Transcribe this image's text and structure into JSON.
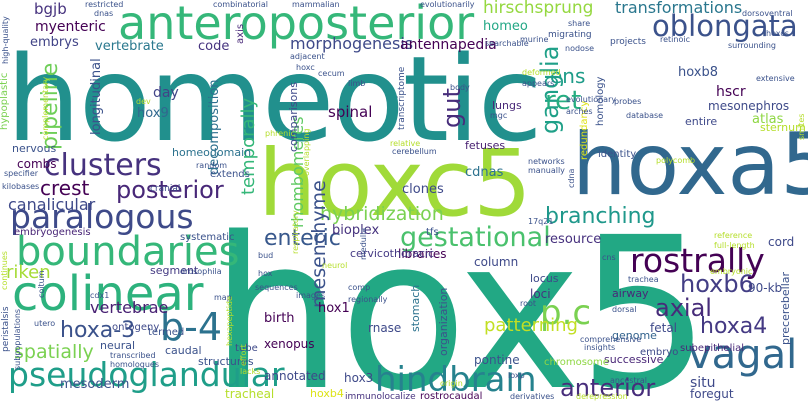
{
  "words": [
    {
      "text": "hox5",
      "color": "#22a884"
    },
    {
      "text": "homeotic",
      "color": "#21908d"
    },
    {
      "text": "hoxc5",
      "color": "#a0da39"
    },
    {
      "text": "hoxa5",
      "color": "#31688e"
    },
    {
      "text": "anteroposterior",
      "color": "#35b779"
    },
    {
      "text": "colinear",
      "color": "#2db27d"
    },
    {
      "text": "boundaries",
      "color": "#35b779"
    },
    {
      "text": "paralogous",
      "color": "#3e4a89"
    },
    {
      "text": "clusters",
      "color": "#46327e"
    },
    {
      "text": "pseudoglandular",
      "color": "#1f9e89"
    },
    {
      "text": "hindbrain",
      "color": "#26828e"
    },
    {
      "text": "vagal",
      "color": "#31688e"
    },
    {
      "text": "rostrally",
      "color": "#440154"
    },
    {
      "text": "oblongata",
      "color": "#3b528b"
    },
    {
      "text": "gestational",
      "color": "#4ac16d"
    },
    {
      "text": "b-4",
      "color": "#2c728e"
    },
    {
      "text": "p.c",
      "color": "#7ad151"
    },
    {
      "text": "posterior",
      "color": "#482878"
    },
    {
      "text": "anterior",
      "color": "#472d7b"
    },
    {
      "text": "hoxa-3",
      "color": "#3b528b"
    },
    {
      "text": "hoxb6",
      "color": "#433e85"
    },
    {
      "text": "hoxa4",
      "color": "#443983"
    },
    {
      "text": "axial",
      "color": "#472c7a"
    },
    {
      "text": "enteric",
      "color": "#38588c"
    },
    {
      "text": "branching",
      "color": "#1f988b"
    },
    {
      "text": "ganglia",
      "color": "#1fa088"
    },
    {
      "text": "ret",
      "color": "#26ad81"
    },
    {
      "text": "ens",
      "color": "#1e9c89"
    },
    {
      "text": "hybridization",
      "color": "#7ad151"
    },
    {
      "text": "hirschsprung",
      "color": "#95d840"
    },
    {
      "text": "transformations",
      "color": "#2a778e"
    },
    {
      "text": "pipeline",
      "color": "#6ece58"
    },
    {
      "text": "spatially",
      "color": "#7ad151"
    },
    {
      "text": "crest",
      "color": "#440154"
    },
    {
      "text": "canalicular",
      "color": "#3e4989"
    },
    {
      "text": "vertebrae",
      "color": "#482173"
    },
    {
      "text": "riken",
      "color": "#a5db36"
    },
    {
      "text": "mesenchyme",
      "color": "#3b528b"
    },
    {
      "text": "patterning",
      "color": "#c2df23"
    },
    {
      "text": "rhombomeres",
      "color": "#5ec962"
    },
    {
      "text": "gut",
      "color": "#472d7b"
    },
    {
      "text": "morphogenesis",
      "color": "#3e4989"
    },
    {
      "text": "antennapedia",
      "color": "#440154"
    },
    {
      "text": "vertebrate",
      "color": "#2a788e"
    },
    {
      "text": "myenteric",
      "color": "#440154"
    },
    {
      "text": "embrys",
      "color": "#414487"
    },
    {
      "text": "bgjb",
      "color": "#46327e"
    },
    {
      "text": "homeo",
      "color": "#22a785"
    },
    {
      "text": "code",
      "color": "#46337f"
    },
    {
      "text": "longitudinal",
      "color": "#3b528b"
    },
    {
      "text": "day",
      "color": "#414487"
    },
    {
      "text": "hox9",
      "color": "#31688e"
    },
    {
      "text": "temporally",
      "color": "#35b779"
    },
    {
      "text": "decomposition",
      "color": "#2d708e"
    },
    {
      "text": "homeodomain",
      "color": "#2c728e"
    },
    {
      "text": "combs",
      "color": "#440154"
    },
    {
      "text": "nervous",
      "color": "#3b528b"
    },
    {
      "text": "hoxb8",
      "color": "#3b528b"
    },
    {
      "text": "hscr",
      "color": "#440154"
    },
    {
      "text": "mesonephros",
      "color": "#3e4a89"
    },
    {
      "text": "atlas",
      "color": "#8fd744"
    },
    {
      "text": "sternum",
      "color": "#b5de2b"
    },
    {
      "text": "resource",
      "color": "#46307e"
    },
    {
      "text": "cdnas",
      "color": "#2c728e"
    },
    {
      "text": "fetuses",
      "color": "#482071"
    },
    {
      "text": "lungs",
      "color": "#482878"
    },
    {
      "text": "clones",
      "color": "#3e4989"
    },
    {
      "text": "spinal",
      "color": "#440154"
    },
    {
      "text": "comparisons",
      "color": "#3e4989"
    },
    {
      "text": "bioplex",
      "color": "#46327e"
    },
    {
      "text": "libraries",
      "color": "#440154"
    },
    {
      "text": "column",
      "color": "#3e4989"
    },
    {
      "text": "cervicothoracic",
      "color": "#443983"
    },
    {
      "text": "enteric-small",
      "color": "#38588c"
    },
    {
      "text": "segment",
      "color": "#443a83"
    },
    {
      "text": "embryogenesis",
      "color": "#482576"
    },
    {
      "text": "systematic",
      "color": "#3b528b"
    },
    {
      "text": "ontogeny",
      "color": "#3e4989"
    },
    {
      "text": "caudal",
      "color": "#3b528b"
    },
    {
      "text": "birth",
      "color": "#440154"
    },
    {
      "text": "hox1",
      "color": "#440154"
    },
    {
      "text": "xenopus",
      "color": "#440154"
    },
    {
      "text": "rnase",
      "color": "#3e4989"
    },
    {
      "text": "stomach",
      "color": "#2c728e"
    },
    {
      "text": "organization",
      "color": "#3b528b"
    },
    {
      "text": "loci",
      "color": "#46337f"
    },
    {
      "text": "locus",
      "color": "#3e4989"
    },
    {
      "text": "fetal",
      "color": "#3e4989"
    },
    {
      "text": "90-kb",
      "color": "#3e4989"
    },
    {
      "text": "airway",
      "color": "#482878"
    },
    {
      "text": "genome",
      "color": "#33638d"
    },
    {
      "text": "subepithelial",
      "color": "#482878"
    },
    {
      "text": "precerebellar",
      "color": "#3b528b"
    },
    {
      "text": "situ",
      "color": "#3e4989"
    },
    {
      "text": "foregut",
      "color": "#3e4989"
    },
    {
      "text": "successive",
      "color": "#482576"
    },
    {
      "text": "chromosome",
      "color": "#8fd744"
    },
    {
      "text": "pontine",
      "color": "#3b528b"
    },
    {
      "text": "embryo",
      "color": "#3e4989"
    },
    {
      "text": "mesoderm",
      "color": "#3b528b"
    },
    {
      "text": "tracheal",
      "color": "#b5de2b"
    },
    {
      "text": "annotated",
      "color": "#3e4989"
    },
    {
      "text": "hoxb4",
      "color": "#dde318"
    },
    {
      "text": "immunolocalize",
      "color": "#46327e"
    },
    {
      "text": "rostrocaudal",
      "color": "#440154"
    },
    {
      "text": "hox3",
      "color": "#3e4989"
    },
    {
      "text": "structures",
      "color": "#3b528b"
    },
    {
      "text": "tube",
      "color": "#3e4989"
    },
    {
      "text": "neural",
      "color": "#3b528b"
    },
    {
      "text": "termed",
      "color": "#3b528b"
    },
    {
      "text": "cord",
      "color": "#3e4989"
    },
    {
      "text": "identity",
      "color": "#3b528b"
    },
    {
      "text": "redundancy",
      "color": "#dde318"
    },
    {
      "text": "entire",
      "color": "#3e4989"
    },
    {
      "text": "homology",
      "color": "#3b528b"
    },
    {
      "text": "axis",
      "color": "#482878"
    },
    {
      "text": "specifier",
      "color": "#3b528b"
    },
    {
      "text": "kilobases",
      "color": "#3b528b"
    },
    {
      "text": "extends",
      "color": "#3b528b"
    },
    {
      "text": "cranial",
      "color": "#3e4989"
    },
    {
      "text": "hypoplastic",
      "color": "#7ad151"
    },
    {
      "text": "restricted",
      "color": "#3b528b"
    },
    {
      "text": "combinatorial",
      "color": "#3b528b"
    },
    {
      "text": "mammalian",
      "color": "#3b528b"
    },
    {
      "text": "evolutionarily",
      "color": "#3b528b"
    },
    {
      "text": "dorsoventral",
      "color": "#3b528b"
    },
    {
      "text": "share",
      "color": "#3b528b"
    },
    {
      "text": "projects",
      "color": "#3b528b"
    },
    {
      "text": "retinoic",
      "color": "#3b528b"
    },
    {
      "text": "surrounding",
      "color": "#3b528b"
    },
    {
      "text": "extensive",
      "color": "#3b528b"
    },
    {
      "text": "nodose",
      "color": "#3b528b"
    },
    {
      "text": "migrating",
      "color": "#3b528b"
    },
    {
      "text": "murine",
      "color": "#3b528b"
    },
    {
      "text": "searchable",
      "color": "#3b528b"
    },
    {
      "text": "adjacent",
      "color": "#3b528b"
    },
    {
      "text": "hoxc",
      "color": "#3b528b"
    },
    {
      "text": "cecum",
      "color": "#3b528b"
    },
    {
      "text": "limb",
      "color": "#3b528b"
    },
    {
      "text": "transcriptome",
      "color": "#3b528b"
    },
    {
      "text": "deformed",
      "color": "#b5de2b"
    },
    {
      "text": "appears",
      "color": "#3b528b"
    },
    {
      "text": "arches",
      "color": "#3b528b"
    },
    {
      "text": "evolutionary",
      "color": "#3b528b"
    },
    {
      "text": "probes",
      "color": "#3b528b"
    },
    {
      "text": "database",
      "color": "#3b528b"
    },
    {
      "text": "body",
      "color": "#3b528b"
    },
    {
      "text": "mgc",
      "color": "#3b528b"
    },
    {
      "text": "relative",
      "color": "#b5de2b"
    },
    {
      "text": "cerebellum",
      "color": "#3b528b"
    },
    {
      "text": "networks",
      "color": "#3b528b"
    },
    {
      "text": "manually",
      "color": "#3b528b"
    },
    {
      "text": "polycomb",
      "color": "#b5de2b"
    },
    {
      "text": "cdna",
      "color": "#3b528b"
    },
    {
      "text": "smites",
      "color": "#b5de2b"
    },
    {
      "text": "phrenic",
      "color": "#b5de2b"
    },
    {
      "text": "complementary",
      "color": "#b5de2b"
    },
    {
      "text": "random",
      "color": "#3b528b"
    },
    {
      "text": "respiratory",
      "color": "#b5de2b"
    },
    {
      "text": "overlapping",
      "color": "#b5de2b"
    },
    {
      "text": "medulla",
      "color": "#3b528b"
    },
    {
      "text": "tfs",
      "color": "#3b528b"
    },
    {
      "text": "17q21",
      "color": "#3b528b"
    },
    {
      "text": "reference",
      "color": "#b5de2b"
    },
    {
      "text": "full-length",
      "color": "#b5de2b"
    },
    {
      "text": "embryonic",
      "color": "#b5de2b"
    },
    {
      "text": "trachea",
      "color": "#3b528b"
    },
    {
      "text": "bud",
      "color": "#3b528b"
    },
    {
      "text": "neurol",
      "color": "#b5de2b"
    },
    {
      "text": "cns",
      "color": "#3b528b"
    },
    {
      "text": "drosophila",
      "color": "#3b528b"
    },
    {
      "text": "continues",
      "color": "#b5de2b"
    },
    {
      "text": "cdx1",
      "color": "#3b528b"
    },
    {
      "text": "coitum",
      "color": "#3b528b"
    },
    {
      "text": "map",
      "color": "#3b528b"
    },
    {
      "text": "images",
      "color": "#3b528b"
    },
    {
      "text": "sequences",
      "color": "#3b528b"
    },
    {
      "text": "regionally",
      "color": "#3b528b"
    },
    {
      "text": "comp",
      "color": "#3b528b"
    },
    {
      "text": "root",
      "color": "#3b528b"
    },
    {
      "text": "dorsal",
      "color": "#3b528b"
    },
    {
      "text": "comprehensive",
      "color": "#3b528b"
    },
    {
      "text": "insights",
      "color": "#3b528b"
    },
    {
      "text": "peristalsis",
      "color": "#3b528b"
    },
    {
      "text": "subpopulations",
      "color": "#3b528b"
    },
    {
      "text": "utero",
      "color": "#3b528b"
    },
    {
      "text": "transcribed",
      "color": "#3b528b"
    },
    {
      "text": "homologues",
      "color": "#3b528b"
    },
    {
      "text": "hexapeptide",
      "color": "#b5de2b"
    },
    {
      "text": "effort",
      "color": "#b5de2b"
    },
    {
      "text": "lacks",
      "color": "#b5de2b"
    },
    {
      "text": "origin",
      "color": "#b5de2b"
    },
    {
      "text": "loxp",
      "color": "#3b528b"
    },
    {
      "text": "ancestral",
      "color": "#3b528b"
    },
    {
      "text": "derivatives",
      "color": "#3b528b"
    },
    {
      "text": "derepression",
      "color": "#b5de2b"
    },
    {
      "text": "hox",
      "color": "#3b528b"
    },
    {
      "text": "high-quality",
      "color": "#3b528b"
    },
    {
      "text": "dnas",
      "color": "#3b528b"
    },
    {
      "text": "dev",
      "color": "#b5de2b"
    },
    {
      "text": "hoxcs",
      "color": "#3b528b"
    }
  ]
}
